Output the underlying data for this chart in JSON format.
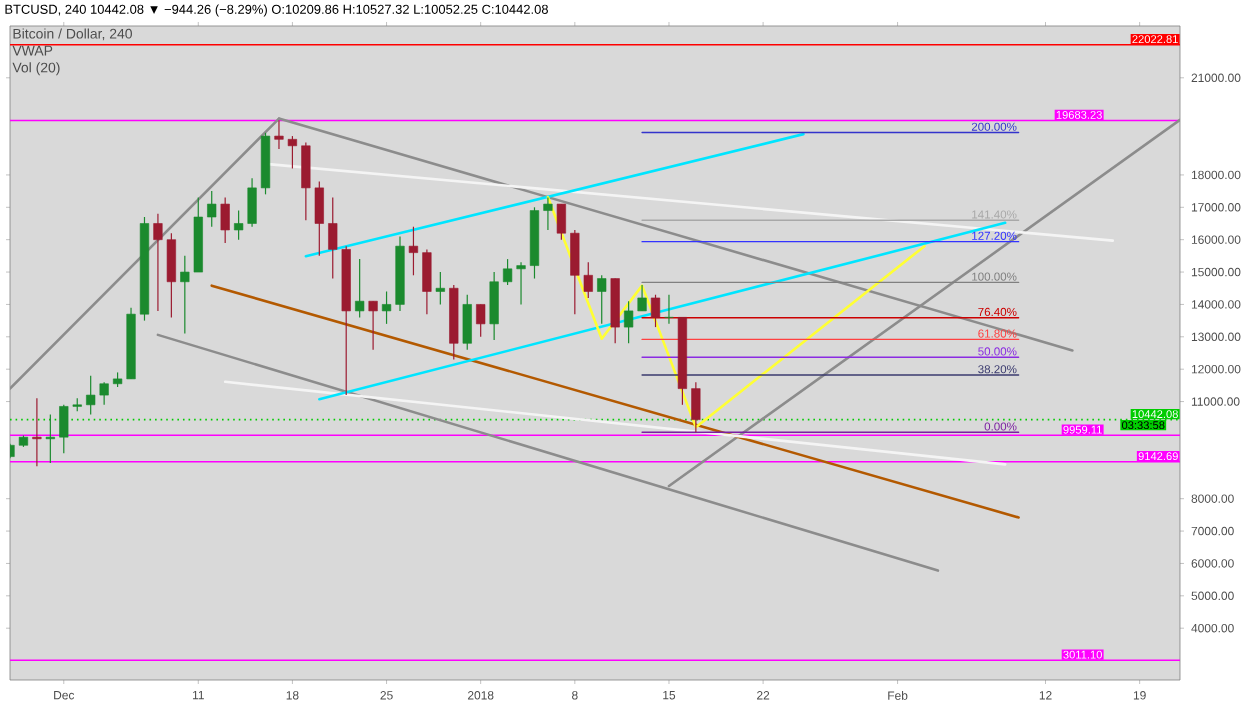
{
  "chart_data": {
    "type": "candlestick",
    "title": "Bitcoin / Dollar, 240",
    "subtitle": "BTCUSD, 240 10442.08 ▼ −944.26 (−8.29%) O:10209.86 H:10527.32 L:10052.25 C:10442.08",
    "annotations": [
      "VWAP",
      "Vol (20)",
      {
        "text": "03:33:58",
        "x": "2018-02-21",
        "y": 10442.08
      }
    ],
    "x": [
      "2017-11-27",
      "2017-11-28",
      "2017-11-29",
      "2017-11-30",
      "2017-12-01",
      "2017-12-02",
      "2017-12-03",
      "2017-12-04",
      "2017-12-05",
      "2017-12-06",
      "2017-12-07",
      "2017-12-08",
      "2017-12-09",
      "2017-12-10",
      "2017-12-11",
      "2017-12-12",
      "2017-12-13",
      "2017-12-14",
      "2017-12-15",
      "2017-12-16",
      "2017-12-17",
      "2017-12-18",
      "2017-12-19",
      "2017-12-20",
      "2017-12-21",
      "2017-12-22",
      "2017-12-23",
      "2017-12-24",
      "2017-12-25",
      "2017-12-26",
      "2017-12-27",
      "2017-12-28",
      "2017-12-29",
      "2017-12-30",
      "2017-12-31",
      "2018-01-01",
      "2018-01-02",
      "2018-01-03",
      "2018-01-04",
      "2018-01-05",
      "2018-01-06",
      "2018-01-07",
      "2018-01-08",
      "2018-01-09",
      "2018-01-10",
      "2018-01-11",
      "2018-01-12",
      "2018-01-13",
      "2018-01-14",
      "2018-01-15",
      "2018-01-16",
      "2018-01-17"
    ],
    "ohlc": [
      [
        9300,
        9700,
        9250,
        9650
      ],
      [
        9650,
        9950,
        9600,
        9900
      ],
      [
        9900,
        11100,
        9000,
        9850
      ],
      [
        9850,
        10600,
        9100,
        9900
      ],
      [
        9900,
        10900,
        9400,
        10850
      ],
      [
        10850,
        11100,
        10700,
        10900
      ],
      [
        10900,
        11800,
        10600,
        11200
      ],
      [
        11200,
        11600,
        10900,
        11550
      ],
      [
        11550,
        11900,
        11450,
        11700
      ],
      [
        11700,
        13900,
        11700,
        13700
      ],
      [
        13700,
        16700,
        13500,
        16500
      ],
      [
        16500,
        16800,
        13800,
        16000
      ],
      [
        16000,
        16200,
        13600,
        14700
      ],
      [
        14700,
        15500,
        13100,
        15000
      ],
      [
        15000,
        17300,
        15000,
        16700
      ],
      [
        16700,
        17500,
        16400,
        17100
      ],
      [
        17100,
        17300,
        15900,
        16300
      ],
      [
        16300,
        16900,
        16000,
        16500
      ],
      [
        16500,
        17900,
        16400,
        17600
      ],
      [
        17600,
        19300,
        17400,
        19200
      ],
      [
        19200,
        19683,
        18800,
        19100
      ],
      [
        19100,
        19200,
        18200,
        18900
      ],
      [
        18900,
        19000,
        16600,
        17600
      ],
      [
        17600,
        17800,
        15500,
        16500
      ],
      [
        16500,
        17300,
        14800,
        15700
      ],
      [
        15700,
        15800,
        11200,
        13800
      ],
      [
        13800,
        15400,
        13600,
        14100
      ],
      [
        14100,
        14100,
        12600,
        13800
      ],
      [
        13800,
        14400,
        13400,
        14000
      ],
      [
        14000,
        16100,
        13800,
        15800
      ],
      [
        15800,
        16400,
        14900,
        15600
      ],
      [
        15600,
        15700,
        13700,
        14400
      ],
      [
        14400,
        15000,
        14000,
        14500
      ],
      [
        14500,
        14600,
        12300,
        12800
      ],
      [
        12800,
        14300,
        12600,
        14000
      ],
      [
        14000,
        14000,
        13000,
        13400
      ],
      [
        13400,
        15000,
        12900,
        14700
      ],
      [
        14700,
        15400,
        14600,
        15100
      ],
      [
        15100,
        15300,
        14000,
        15200
      ],
      [
        15200,
        17000,
        14800,
        16900
      ],
      [
        16900,
        17300,
        16300,
        17100
      ],
      [
        17100,
        17100,
        16000,
        16200
      ],
      [
        16200,
        16300,
        13700,
        14900
      ],
      [
        14900,
        15300,
        14200,
        14400
      ],
      [
        14400,
        14900,
        13400,
        14800
      ],
      [
        14800,
        14800,
        12800,
        13300
      ],
      [
        13300,
        14100,
        12800,
        13800
      ],
      [
        13800,
        14600,
        13800,
        14200
      ],
      [
        14200,
        14300,
        13300,
        13600
      ],
      [
        13600,
        14300,
        13400,
        13600
      ],
      [
        13600,
        13600,
        10900,
        11400
      ],
      [
        11400,
        11600,
        10052.25,
        10442.08
      ]
    ],
    "series": [
      {
        "type": "line",
        "color": "#8c8c8c",
        "x": [
          "2017-11-27",
          "2017-12-17"
        ],
        "values": [
          11400,
          19740
        ]
      },
      {
        "type": "line",
        "color": "#8c8c8c",
        "x": [
          "2017-12-17",
          "2018-02-14"
        ],
        "values": [
          19740,
          12580
        ]
      },
      {
        "type": "line",
        "color": "#8c8c8c",
        "x": [
          "2017-12-08",
          "2018-02-04"
        ],
        "values": [
          13060,
          5780
        ]
      },
      {
        "type": "line",
        "color": "#8c8c8c",
        "x": [
          "2018-01-15",
          "2018-02-22"
        ],
        "values": [
          8390,
          19700
        ]
      },
      {
        "type": "line",
        "color": "#b35900",
        "x": [
          "2017-12-12",
          "2018-02-10"
        ],
        "values": [
          14580,
          7420
        ]
      },
      {
        "type": "line",
        "color": "#f4f4f4",
        "x": [
          "2017-12-16",
          "2018-02-17"
        ],
        "values": [
          18340,
          15970
        ]
      },
      {
        "type": "line",
        "color": "#f4f4f4",
        "x": [
          "2017-12-13",
          "2018-02-09"
        ],
        "values": [
          11610,
          9060
        ]
      },
      {
        "type": "line",
        "color": "#00e5ff",
        "x": [
          "2017-12-19",
          "2018-01-25"
        ],
        "values": [
          15490,
          19260
        ]
      },
      {
        "type": "line",
        "color": "#00e5ff",
        "x": [
          "2017-12-20",
          "2018-02-09"
        ],
        "values": [
          11070,
          16520
        ]
      },
      {
        "type": "line",
        "color": "#ffff33",
        "x": [
          "2018-01-06",
          "2018-01-10",
          "2018-01-13",
          "2018-01-17",
          "2018-02-03"
        ],
        "values": [
          17310,
          12940,
          14580,
          10210,
          15800
        ]
      },
      {
        "type": "line",
        "name": "0.00%",
        "color": "#7b1fa2",
        "x": [
          "2018-01-13",
          "2018-02-10"
        ],
        "values": [
          10052,
          10052
        ]
      },
      {
        "type": "line",
        "name": "38.20%",
        "color": "#3a3a6e",
        "x": [
          "2018-01-13",
          "2018-02-10"
        ],
        "values": [
          11820,
          11820
        ]
      },
      {
        "type": "line",
        "name": "50.00%",
        "color": "#8a2be2",
        "x": [
          "2018-01-13",
          "2018-02-10"
        ],
        "values": [
          12370,
          12370
        ]
      },
      {
        "type": "line",
        "name": "61.80%",
        "color": "#ff4040",
        "x": [
          "2018-01-13",
          "2018-02-10"
        ],
        "values": [
          12920,
          12920
        ]
      },
      {
        "type": "line",
        "name": "76.40%",
        "color": "#cc0000",
        "x": [
          "2018-01-13",
          "2018-02-10"
        ],
        "values": [
          13590,
          13590
        ]
      },
      {
        "type": "line",
        "name": "100.00%",
        "color": "#808080",
        "x": [
          "2018-01-13",
          "2018-02-10"
        ],
        "values": [
          14680,
          14680
        ]
      },
      {
        "type": "line",
        "name": "127.20%",
        "color": "#3333ff",
        "x": [
          "2018-01-13",
          "2018-02-10"
        ],
        "values": [
          15940,
          15940
        ]
      },
      {
        "type": "line",
        "name": "141.40%",
        "color": "#a8a8a8",
        "x": [
          "2018-01-13",
          "2018-02-10"
        ],
        "values": [
          16600,
          16600
        ]
      },
      {
        "type": "line",
        "name": "200.00%",
        "color": "#3333cc",
        "x": [
          "2018-01-13",
          "2018-02-10"
        ],
        "values": [
          19310,
          19310
        ]
      }
    ],
    "ref_lines": [
      {
        "axis": "y",
        "value": 22022.81,
        "label": "22022.81",
        "color": "#ff0000"
      },
      {
        "axis": "y",
        "value": 19683.23,
        "label": "19683.23",
        "color": "#ff00ff"
      },
      {
        "axis": "y",
        "value": 10442.08,
        "label": "10442.08",
        "color": "#00cc00",
        "line_style": "dotted"
      },
      {
        "axis": "y",
        "value": 9959.11,
        "label": "9959.11",
        "color": "#ff00ff"
      },
      {
        "axis": "y",
        "value": 9142.69,
        "label": "9142.69",
        "color": "#ff00ff"
      },
      {
        "axis": "y",
        "value": 3011.1,
        "label": "3011.10",
        "color": "#ff00ff"
      }
    ],
    "xlim": [
      "2017-11-27",
      "2018-02-22"
    ],
    "xticks": [
      {
        "value": "2017-12-01",
        "label": "Dec"
      },
      {
        "value": "2017-12-11",
        "label": "11"
      },
      {
        "value": "2017-12-18",
        "label": "18"
      },
      {
        "value": "2017-12-25",
        "label": "25"
      },
      {
        "value": "2018-01-01",
        "label": "2018"
      },
      {
        "value": "2018-01-08",
        "label": "8"
      },
      {
        "value": "2018-01-15",
        "label": "15"
      },
      {
        "value": "2018-01-22",
        "label": "22"
      },
      {
        "value": "2018-02-01",
        "label": "Feb"
      },
      {
        "value": "2018-02-12",
        "label": "12"
      },
      {
        "value": "2018-02-19",
        "label": "19"
      }
    ],
    "ylim": [
      2400,
      22600
    ],
    "yticks": [
      {
        "value": 4000,
        "label": "4000.00"
      },
      {
        "value": 5000,
        "label": "5000.00"
      },
      {
        "value": 6000,
        "label": "6000.00"
      },
      {
        "value": 7000,
        "label": "7000.00"
      },
      {
        "value": 8000,
        "label": "8000.00"
      },
      {
        "value": 11000,
        "label": "11000.00"
      },
      {
        "value": 12000,
        "label": "12000.00"
      },
      {
        "value": 13000,
        "label": "13000.00"
      },
      {
        "value": 14000,
        "label": "14000.00"
      },
      {
        "value": 15000,
        "label": "15000.00"
      },
      {
        "value": 16000,
        "label": "16000.00"
      },
      {
        "value": 17000,
        "label": "17000.00"
      },
      {
        "value": 18000,
        "label": "18000.00"
      },
      {
        "value": 21000,
        "label": "21000.00"
      }
    ],
    "grid": false
  }
}
